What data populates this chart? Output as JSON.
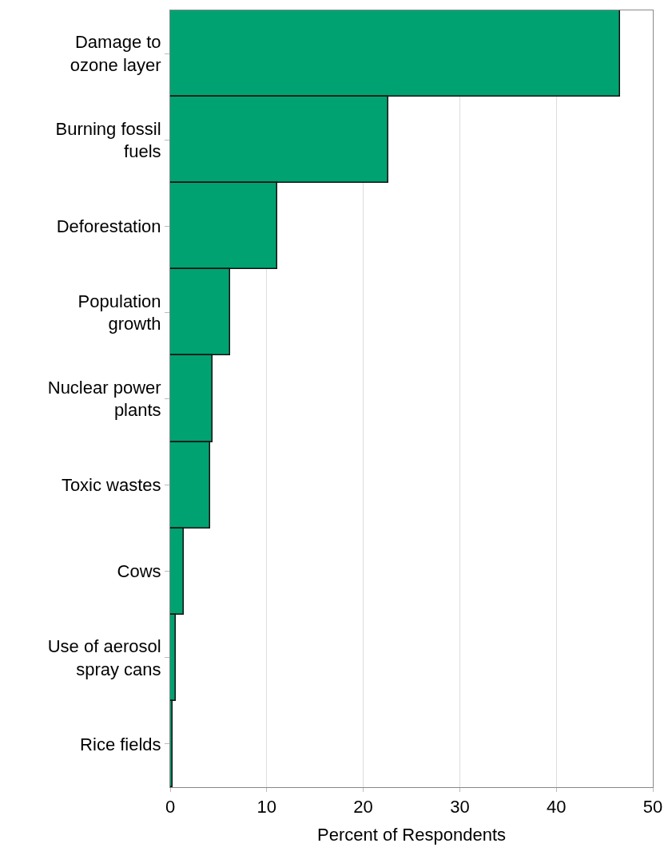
{
  "chart_data": {
    "type": "bar",
    "orientation": "horizontal",
    "xlabel": "Percent of Respondents",
    "categories": [
      "Damage to\nozone layer",
      "Burning fossil\nfuels",
      "Deforestation",
      "Population\ngrowth",
      "Nuclear power\nplants",
      "Toxic wastes",
      "Cows",
      "Use of aerosol\nspray cans",
      "Rice fields"
    ],
    "values": [
      46.6,
      22.6,
      11.1,
      6.2,
      4.4,
      4.1,
      1.4,
      0.6,
      0.25
    ],
    "color": "#00a272",
    "xlim": [
      0,
      50
    ],
    "xticks": [
      0,
      10,
      20,
      30,
      40,
      50
    ],
    "grid": "x"
  }
}
